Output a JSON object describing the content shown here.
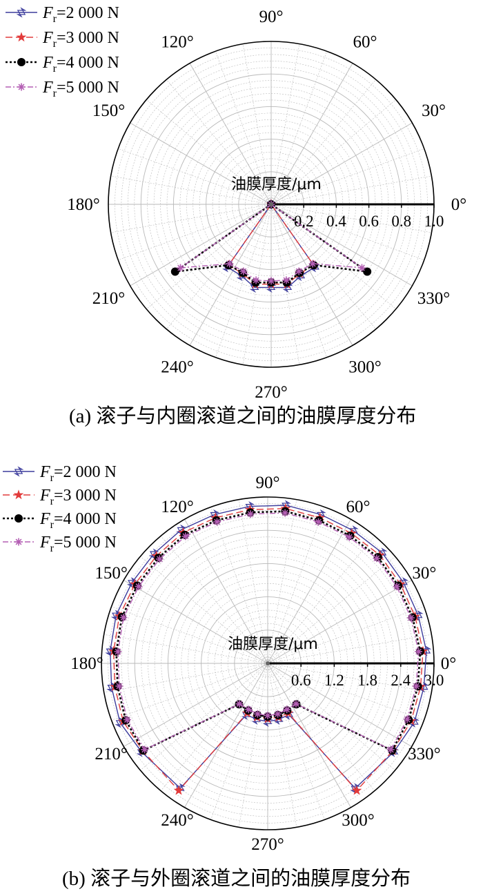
{
  "chart_data": [
    {
      "type": "polar-line",
      "panel": "a",
      "caption": "(a) 滚子与内圈滚道之间的油膜厚度分布",
      "radial_axis_label": "油膜厚度/μm",
      "radial_range": [
        0,
        1.0
      ],
      "radial_ticks": [
        "0.2",
        "0.4",
        "0.6",
        "0.8",
        "1.0"
      ],
      "angle_ticks": [
        "0°",
        "30°",
        "60°",
        "90°",
        "120°",
        "150°",
        "180°",
        "210°",
        "240°",
        "270°",
        "300°",
        "330°"
      ],
      "grid": true,
      "legend_position": "top-left",
      "colors": {
        "s1": "#3b3b9c",
        "s2": "#e23b3b",
        "s3": "#000000",
        "s4": "#b45fb4"
      },
      "series": [
        {
          "name_prefix": "F",
          "name_sub": "r",
          "name_suffix": "=2 000 N",
          "marker": "hexagram",
          "color_key": "s1",
          "dash": "",
          "points": [
            [
              90,
              0
            ],
            [
              235,
              0.47
            ],
            [
              247.5,
              0.475
            ],
            [
              258.75,
              0.52
            ],
            [
              270,
              0.51
            ],
            [
              281.25,
              0.52
            ],
            [
              292.5,
              0.475
            ],
            [
              305,
              0.47
            ],
            [
              90,
              0
            ]
          ]
        },
        {
          "name_prefix": "F",
          "name_sub": "r",
          "name_suffix": "=3 000 N",
          "marker": "star",
          "color_key": "s2",
          "dash": "10 5",
          "points": [
            [
              90,
              0
            ],
            [
              235,
              0.455
            ],
            [
              247.5,
              0.46
            ],
            [
              258.75,
              0.5
            ],
            [
              270,
              0.49
            ],
            [
              281.25,
              0.5
            ],
            [
              292.5,
              0.46
            ],
            [
              305,
              0.455
            ],
            [
              90,
              0
            ]
          ]
        },
        {
          "name_prefix": "F",
          "name_sub": "r",
          "name_suffix": "=4 000 N",
          "marker": "circle",
          "color_key": "s3",
          "dash": "3 3",
          "points": [
            [
              90,
              0
            ],
            [
              215,
              0.72
            ],
            [
              235,
              0.455
            ],
            [
              247.5,
              0.455
            ],
            [
              258.75,
              0.49
            ],
            [
              270,
              0.48
            ],
            [
              281.25,
              0.49
            ],
            [
              292.5,
              0.455
            ],
            [
              305,
              0.455
            ],
            [
              325,
              0.72
            ],
            [
              90,
              0
            ]
          ]
        },
        {
          "name_prefix": "F",
          "name_sub": "r",
          "name_suffix": "=5 000 N",
          "marker": "asterisk",
          "color_key": "s4",
          "dash": "8 3 2 3",
          "points": [
            [
              90,
              0
            ],
            [
              215,
              0.68
            ],
            [
              235,
              0.445
            ],
            [
              247.5,
              0.445
            ],
            [
              258.75,
              0.475
            ],
            [
              270,
              0.47
            ],
            [
              281.25,
              0.475
            ],
            [
              292.5,
              0.445
            ],
            [
              305,
              0.445
            ],
            [
              325,
              0.68
            ],
            [
              90,
              0
            ]
          ]
        }
      ]
    },
    {
      "type": "polar-line",
      "panel": "b",
      "caption": "(b) 滚子与外圈滚道之间的油膜厚度分布",
      "radial_axis_label": "油膜厚度/μm",
      "radial_range": [
        0,
        3.0
      ],
      "radial_ticks": [
        "0.6",
        "1.2",
        "1.8",
        "2.4",
        "3.0"
      ],
      "angle_ticks": [
        "0°",
        "30°",
        "60°",
        "90°",
        "120°",
        "150°",
        "180°",
        "210°",
        "240°",
        "270°",
        "300°",
        "330°"
      ],
      "grid": true,
      "legend_position": "top-left",
      "colors": {
        "s1": "#3b3b9c",
        "s2": "#e23b3b",
        "s3": "#000000",
        "s4": "#b45fb4"
      },
      "series": [
        {
          "name_prefix": "F",
          "name_sub": "r",
          "name_suffix": "=2 000 N",
          "marker": "hexagram",
          "color_key": "s1",
          "dash": "",
          "outer": [
            2.85,
            2.85,
            2.87,
            2.85,
            2.85,
            2.87,
            2.85,
            2.85,
            2.87,
            2.85,
            2.85,
            2.87,
            2.85,
            2.85,
            2.87,
            2.85,
            2.85,
            2.87
          ],
          "inner_angles": [
            215,
            235,
            247.5,
            258.75,
            270,
            281.25,
            292.5,
            305,
            325
          ],
          "inner": [
            2.78,
            2.75,
            1.0,
            1.03,
            1.05,
            1.03,
            1.0,
            2.75,
            2.78
          ]
        },
        {
          "name_prefix": "F",
          "name_sub": "r",
          "name_suffix": "=3 000 N",
          "marker": "star",
          "color_key": "s2",
          "dash": "10 5",
          "outer": [
            2.79,
            2.79,
            2.81,
            2.79,
            2.79,
            2.81,
            2.79,
            2.79,
            2.81,
            2.79,
            2.79,
            2.81,
            2.79,
            2.79,
            2.81,
            2.79,
            2.79,
            2.81
          ],
          "inner_angles": [
            215,
            235,
            247.5,
            258.75,
            270,
            281.25,
            292.5,
            305,
            325
          ],
          "inner": [
            2.75,
            2.8,
            0.97,
            0.99,
            1.0,
            0.99,
            0.97,
            2.8,
            2.75
          ]
        },
        {
          "name_prefix": "F",
          "name_sub": "r",
          "name_suffix": "=4 000 N",
          "marker": "circle",
          "color_key": "s3",
          "dash": "3 3",
          "outer": [
            2.74,
            2.74,
            2.76,
            2.74,
            2.74,
            2.76,
            2.74,
            2.74,
            2.76,
            2.74,
            2.74,
            2.76,
            2.74,
            2.74,
            2.76,
            2.74,
            2.74,
            2.76
          ],
          "inner_angles": [
            215,
            235,
            247.5,
            258.75,
            270,
            281.25,
            292.5,
            305,
            325
          ],
          "inner": [
            2.74,
            0.9,
            0.92,
            0.95,
            0.96,
            0.95,
            0.92,
            0.9,
            2.74
          ]
        },
        {
          "name_prefix": "F",
          "name_sub": "r",
          "name_suffix": "=5 000 N",
          "marker": "asterisk",
          "color_key": "s4",
          "dash": "8 3 2 3",
          "outer": [
            2.71,
            2.71,
            2.73,
            2.71,
            2.71,
            2.73,
            2.71,
            2.71,
            2.73,
            2.71,
            2.71,
            2.73,
            2.71,
            2.71,
            2.73,
            2.71,
            2.71,
            2.73
          ],
          "inner_angles": [
            215,
            235,
            247.5,
            258.75,
            270,
            281.25,
            292.5,
            305,
            325
          ],
          "inner": [
            2.71,
            0.89,
            0.9,
            0.93,
            0.94,
            0.93,
            0.9,
            0.89,
            2.71
          ]
        }
      ]
    }
  ]
}
